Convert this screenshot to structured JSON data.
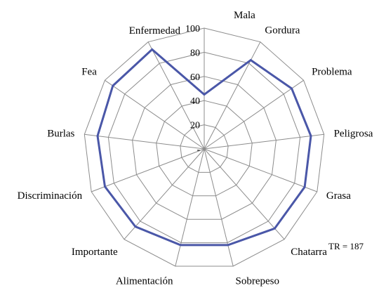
{
  "chart_data": {
    "type": "radar",
    "title": "",
    "categories": [
      "Mala",
      "Gordura",
      "Problema",
      "Peligrosa",
      "Grasa",
      "Chatarra",
      "Sobrepeso",
      "Alimentación",
      "Importante",
      "Discriminación",
      "Burlas",
      "Fea",
      "Enfermedad"
    ],
    "series": [
      {
        "values": [
          45,
          83,
          88,
          89,
          89,
          88,
          82,
          82,
          86,
          88,
          89,
          92,
          93
        ]
      }
    ],
    "rlim": [
      0,
      100
    ],
    "ticks": [
      {
        "value": 0,
        "label": "-"
      },
      {
        "value": 20,
        "label": "20"
      },
      {
        "value": 40,
        "label": "40"
      },
      {
        "value": 60,
        "label": "60"
      },
      {
        "value": 80,
        "label": "80"
      },
      {
        "value": 100,
        "label": "100"
      }
    ],
    "grid": true,
    "legend": "none",
    "annotation": "TR = 187",
    "colors": {
      "series": "#4a57a8",
      "grid": "#8c8c8c"
    }
  }
}
